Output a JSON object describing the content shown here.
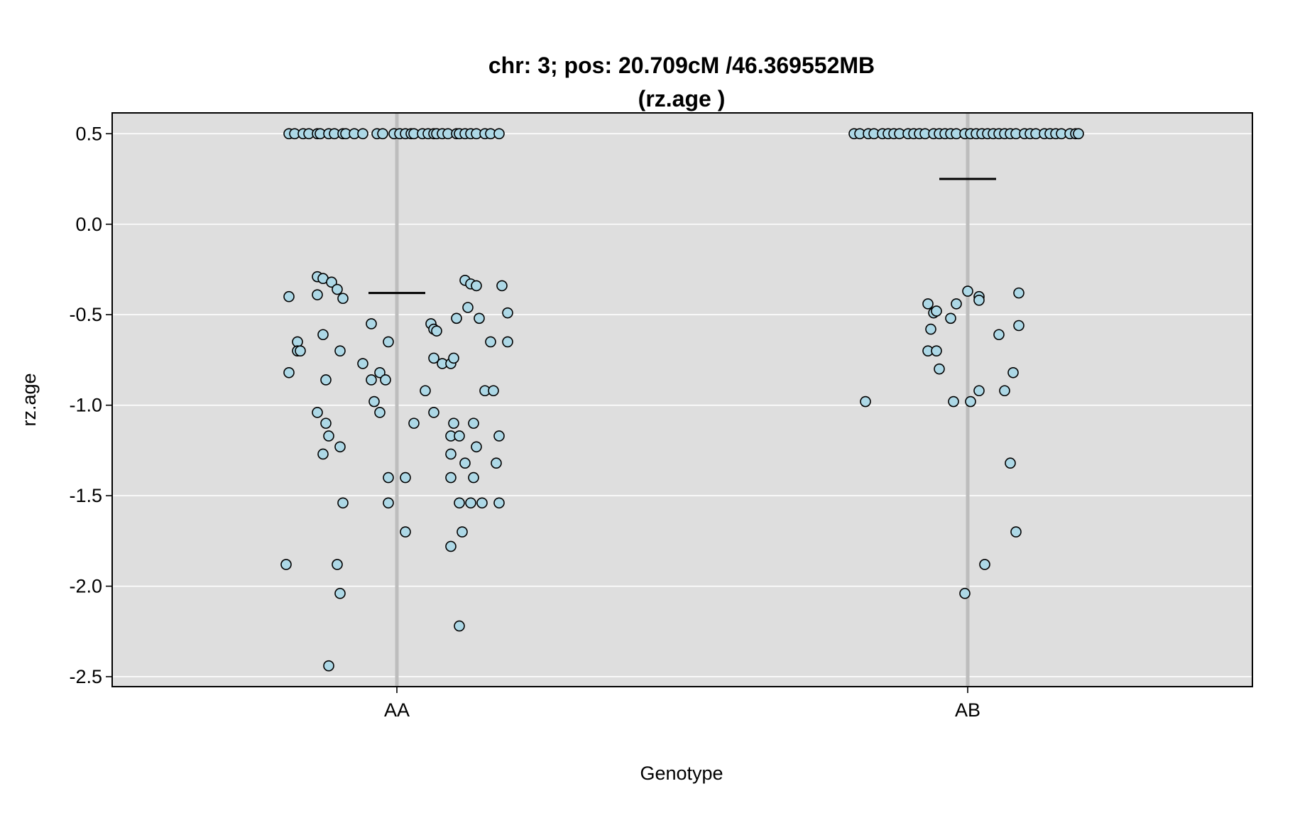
{
  "chart_data": {
    "type": "scatter",
    "title_line1": "chr: 3; pos: 20.709cM /46.369552MB",
    "title_line2": "(rz.age )",
    "xlabel": "Genotype",
    "ylabel": "rz.age",
    "categories": [
      "AA",
      "AB"
    ],
    "ylim": [
      -2.555,
      0.615
    ],
    "yticks": [
      0.5,
      0.0,
      -0.5,
      -1.0,
      -1.5,
      -2.0,
      -2.5
    ],
    "ytick_labels": [
      "0.5",
      "0.0",
      "-0.5",
      "-1.0",
      "-1.5",
      "-2.0",
      "-2.5"
    ],
    "grid": true,
    "background": "#dedede",
    "point_color": "#add8e6",
    "means": [
      -0.38,
      0.25
    ],
    "series": [
      {
        "category": "AA",
        "points": [
          [
            -0.38,
            0.5
          ],
          [
            -0.36,
            0.5
          ],
          [
            -0.33,
            0.5
          ],
          [
            -0.31,
            0.5
          ],
          [
            -0.28,
            0.5
          ],
          [
            -0.27,
            0.5
          ],
          [
            -0.24,
            0.5
          ],
          [
            -0.22,
            0.5
          ],
          [
            -0.19,
            0.5
          ],
          [
            -0.18,
            0.5
          ],
          [
            -0.15,
            0.5
          ],
          [
            -0.12,
            0.5
          ],
          [
            -0.07,
            0.5
          ],
          [
            -0.05,
            0.5
          ],
          [
            -0.01,
            0.5
          ],
          [
            0.01,
            0.5
          ],
          [
            0.03,
            0.5
          ],
          [
            0.05,
            0.5
          ],
          [
            0.06,
            0.5
          ],
          [
            0.09,
            0.5
          ],
          [
            0.11,
            0.5
          ],
          [
            0.13,
            0.5
          ],
          [
            0.14,
            0.5
          ],
          [
            0.16,
            0.5
          ],
          [
            0.18,
            0.5
          ],
          [
            0.21,
            0.5
          ],
          [
            0.22,
            0.5
          ],
          [
            0.24,
            0.5
          ],
          [
            0.26,
            0.5
          ],
          [
            0.28,
            0.5
          ],
          [
            0.31,
            0.5
          ],
          [
            0.33,
            0.5
          ],
          [
            0.36,
            0.5
          ],
          [
            -0.38,
            -0.4
          ],
          [
            -0.38,
            -0.82
          ],
          [
            -0.35,
            -0.65
          ],
          [
            -0.35,
            -0.7
          ],
          [
            -0.34,
            -0.7
          ],
          [
            -0.28,
            -0.29
          ],
          [
            -0.28,
            -0.39
          ],
          [
            -0.26,
            -0.3
          ],
          [
            -0.23,
            -0.32
          ],
          [
            -0.21,
            -0.36
          ],
          [
            -0.19,
            -0.41
          ],
          [
            -0.26,
            -0.61
          ],
          [
            -0.2,
            -0.7
          ],
          [
            -0.25,
            -0.86
          ],
          [
            -0.12,
            -0.77
          ],
          [
            -0.28,
            -1.04
          ],
          [
            -0.25,
            -1.1
          ],
          [
            -0.24,
            -1.17
          ],
          [
            -0.26,
            -1.27
          ],
          [
            -0.2,
            -1.23
          ],
          [
            -0.19,
            -1.54
          ],
          [
            -0.39,
            -1.88
          ],
          [
            -0.21,
            -1.88
          ],
          [
            -0.2,
            -2.04
          ],
          [
            -0.24,
            -2.44
          ],
          [
            -0.09,
            -0.55
          ],
          [
            -0.06,
            -0.82
          ],
          [
            -0.09,
            -0.86
          ],
          [
            -0.04,
            -0.86
          ],
          [
            -0.08,
            -0.98
          ],
          [
            -0.06,
            -1.04
          ],
          [
            -0.03,
            -0.65
          ],
          [
            -0.03,
            -1.4
          ],
          [
            -0.03,
            -1.54
          ],
          [
            0.03,
            -1.4
          ],
          [
            0.03,
            -1.7
          ],
          [
            0.06,
            -1.1
          ],
          [
            0.1,
            -0.92
          ],
          [
            0.12,
            -0.55
          ],
          [
            0.13,
            -0.58
          ],
          [
            0.14,
            -0.59
          ],
          [
            0.13,
            -0.74
          ],
          [
            0.16,
            -0.77
          ],
          [
            0.19,
            -0.77
          ],
          [
            0.2,
            -0.74
          ],
          [
            0.13,
            -1.04
          ],
          [
            0.21,
            -0.52
          ],
          [
            0.24,
            -0.31
          ],
          [
            0.26,
            -0.33
          ],
          [
            0.28,
            -0.34
          ],
          [
            0.25,
            -0.46
          ],
          [
            0.29,
            -0.52
          ],
          [
            0.2,
            -1.1
          ],
          [
            0.19,
            -1.17
          ],
          [
            0.22,
            -1.17
          ],
          [
            0.19,
            -1.27
          ],
          [
            0.24,
            -1.32
          ],
          [
            0.28,
            -1.23
          ],
          [
            0.27,
            -1.1
          ],
          [
            0.19,
            -1.4
          ],
          [
            0.27,
            -1.4
          ],
          [
            0.22,
            -1.54
          ],
          [
            0.26,
            -1.54
          ],
          [
            0.3,
            -1.54
          ],
          [
            0.23,
            -1.7
          ],
          [
            0.19,
            -1.78
          ],
          [
            0.22,
            -2.22
          ],
          [
            0.31,
            -0.92
          ],
          [
            0.34,
            -0.92
          ],
          [
            0.33,
            -0.65
          ],
          [
            0.37,
            -0.34
          ],
          [
            0.39,
            -0.49
          ],
          [
            0.39,
            -0.65
          ],
          [
            0.36,
            -1.17
          ],
          [
            0.35,
            -1.32
          ],
          [
            0.36,
            -1.54
          ]
        ]
      },
      {
        "category": "AB",
        "points": [
          [
            -0.4,
            0.5
          ],
          [
            -0.38,
            0.5
          ],
          [
            -0.35,
            0.5
          ],
          [
            -0.33,
            0.5
          ],
          [
            -0.3,
            0.5
          ],
          [
            -0.28,
            0.5
          ],
          [
            -0.26,
            0.5
          ],
          [
            -0.24,
            0.5
          ],
          [
            -0.21,
            0.5
          ],
          [
            -0.19,
            0.5
          ],
          [
            -0.17,
            0.5
          ],
          [
            -0.15,
            0.5
          ],
          [
            -0.12,
            0.5
          ],
          [
            -0.1,
            0.5
          ],
          [
            -0.08,
            0.5
          ],
          [
            -0.06,
            0.5
          ],
          [
            -0.04,
            0.5
          ],
          [
            -0.01,
            0.5
          ],
          [
            0.01,
            0.5
          ],
          [
            0.03,
            0.5
          ],
          [
            0.05,
            0.5
          ],
          [
            0.07,
            0.5
          ],
          [
            0.09,
            0.5
          ],
          [
            0.11,
            0.5
          ],
          [
            0.13,
            0.5
          ],
          [
            0.15,
            0.5
          ],
          [
            0.17,
            0.5
          ],
          [
            0.2,
            0.5
          ],
          [
            0.22,
            0.5
          ],
          [
            0.24,
            0.5
          ],
          [
            0.27,
            0.5
          ],
          [
            0.29,
            0.5
          ],
          [
            0.31,
            0.5
          ],
          [
            0.33,
            0.5
          ],
          [
            0.36,
            0.5
          ],
          [
            0.38,
            0.5
          ],
          [
            0.39,
            0.5
          ],
          [
            -0.36,
            -0.98
          ],
          [
            -0.14,
            -0.44
          ],
          [
            -0.12,
            -0.49
          ],
          [
            -0.11,
            -0.48
          ],
          [
            -0.13,
            -0.58
          ],
          [
            -0.14,
            -0.7
          ],
          [
            -0.11,
            -0.7
          ],
          [
            -0.1,
            -0.8
          ],
          [
            -0.06,
            -0.52
          ],
          [
            -0.04,
            -0.44
          ],
          [
            -0.05,
            -0.98
          ],
          [
            0.0,
            -0.37
          ],
          [
            -0.01,
            -2.04
          ],
          [
            0.01,
            -0.98
          ],
          [
            0.04,
            -0.4
          ],
          [
            0.04,
            -0.42
          ],
          [
            0.04,
            -0.92
          ],
          [
            0.06,
            -1.88
          ],
          [
            0.11,
            -0.61
          ],
          [
            0.13,
            -0.92
          ],
          [
            0.16,
            -0.82
          ],
          [
            0.15,
            -1.32
          ],
          [
            0.17,
            -1.7
          ],
          [
            0.18,
            -0.38
          ],
          [
            0.18,
            -0.56
          ]
        ]
      }
    ]
  }
}
